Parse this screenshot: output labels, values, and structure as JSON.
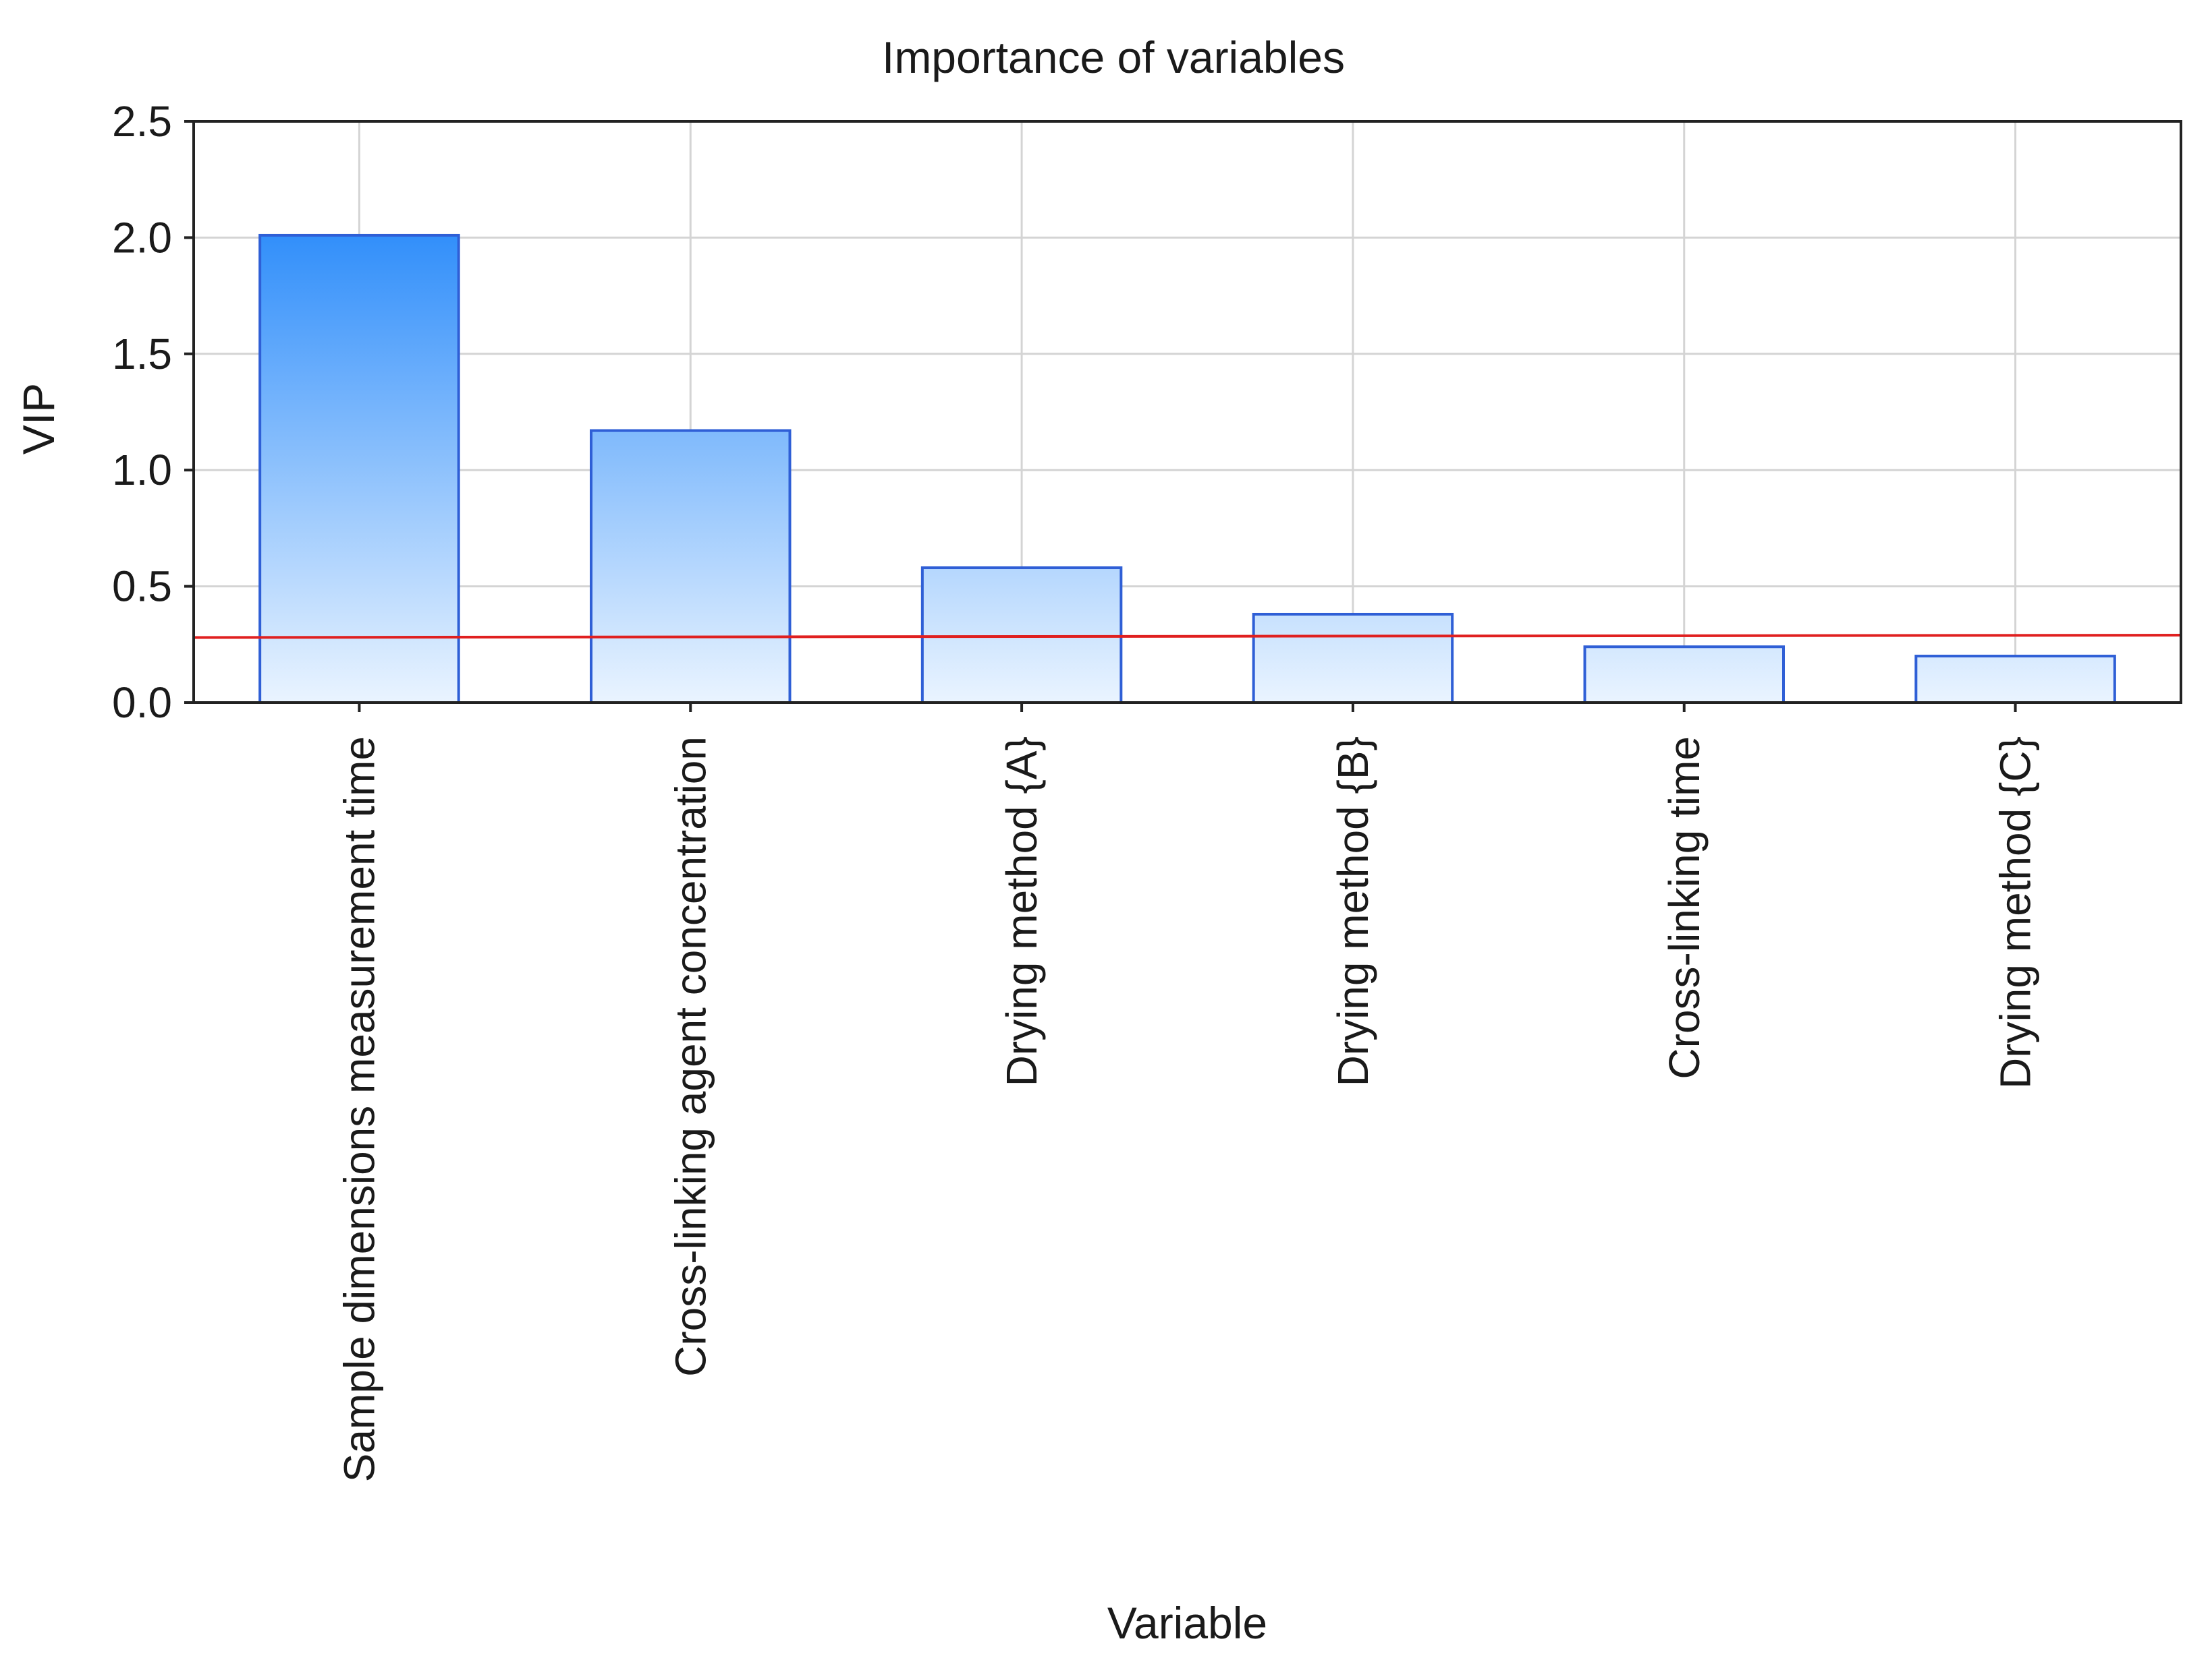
{
  "chart_data": {
    "type": "bar",
    "title": "Importance of variables",
    "xlabel": "Variable",
    "ylabel": "VIP",
    "ylim": [
      0,
      2.5
    ],
    "yticks": [
      "0.0",
      "0.5",
      "1.0",
      "1.5",
      "2.0",
      "2.5"
    ],
    "yticks_values": [
      0.0,
      0.5,
      1.0,
      1.5,
      2.0,
      2.5
    ],
    "categories": [
      "Sample dimensions measurement time",
      "Cross-linking agent concentration",
      "Drying method {A}",
      "Drying method {B}",
      "Cross-linking time",
      "Drying method {C}"
    ],
    "values": [
      2.01,
      1.17,
      0.58,
      0.38,
      0.24,
      0.2
    ],
    "reference_line": {
      "y_start": 0.28,
      "y_end": 0.29,
      "color": "#e02020"
    },
    "grid": true,
    "colors": {
      "bar_top": "#2e8dfa",
      "bar_bottom": "#eaf4ff",
      "bar_edge": "#2f5fd6",
      "grid": "#d4d4d4"
    }
  }
}
